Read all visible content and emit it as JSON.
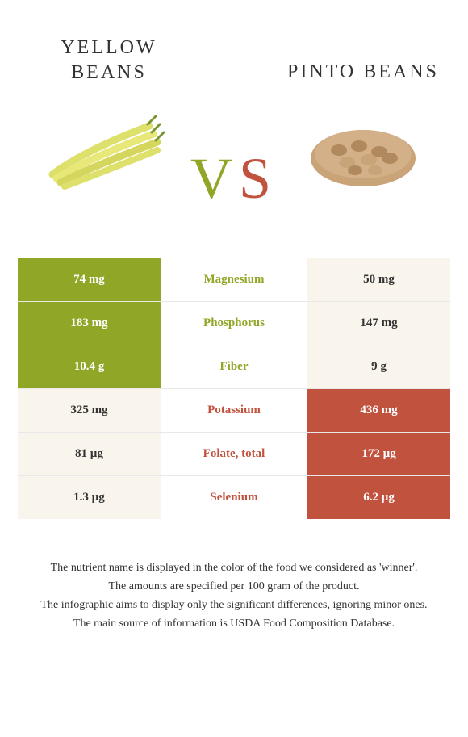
{
  "header": {
    "left_title": "YELLOW BEANS",
    "right_title": "PINTO BEANS",
    "vs_v": "V",
    "vs_s": "S"
  },
  "colors": {
    "winner_left_bg": "#8fa627",
    "winner_right_bg": "#c1523e",
    "loser_bg": "#f9f5ec",
    "text_dark": "#333333",
    "text_white": "#ffffff",
    "border": "#e8e8e8",
    "yellow_bean": "#dde06a",
    "pinto_bean": "#c9a478"
  },
  "nutrients": [
    {
      "left": "74 mg",
      "label": "Magnesium",
      "right": "50 mg",
      "winner": "left"
    },
    {
      "left": "183 mg",
      "label": "Phosphorus",
      "right": "147 mg",
      "winner": "left"
    },
    {
      "left": "10.4 g",
      "label": "Fiber",
      "right": "9 g",
      "winner": "left"
    },
    {
      "left": "325 mg",
      "label": "Potassium",
      "right": "436 mg",
      "winner": "right"
    },
    {
      "left": "81 µg",
      "label": "Folate, total",
      "right": "172 µg",
      "winner": "right"
    },
    {
      "left": "1.3 µg",
      "label": "Selenium",
      "right": "6.2 µg",
      "winner": "right"
    }
  ],
  "footer": {
    "line1": "The nutrient name is displayed in the color of the food we considered as 'winner'.",
    "line2": "The amounts are specified per 100 gram of the product.",
    "line3": "The infographic aims to display only the significant differences, ignoring minor ones.",
    "line4": "The main source of information is USDA Food Composition Database."
  }
}
